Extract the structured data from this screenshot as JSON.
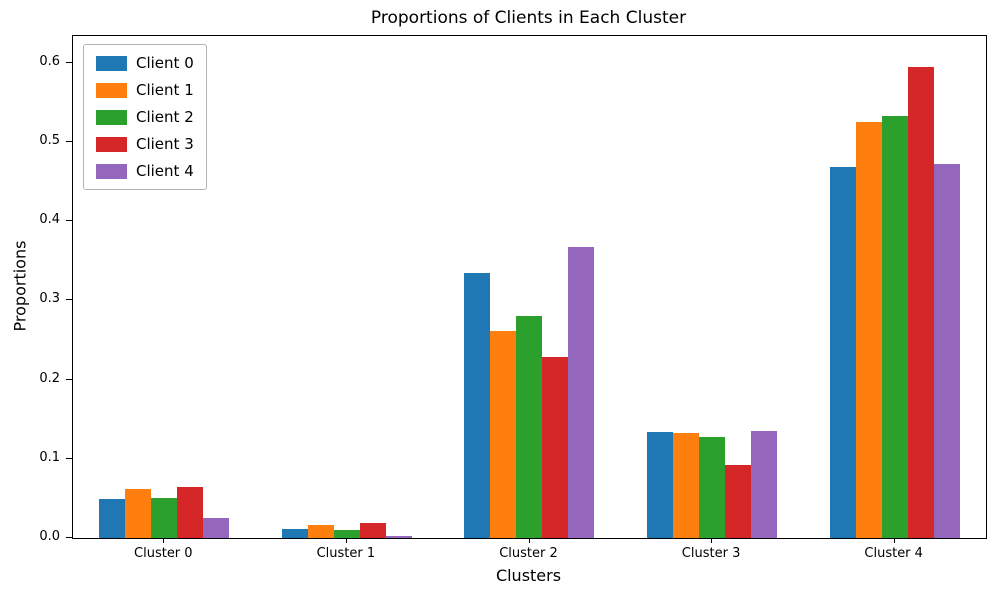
{
  "chart_data": {
    "type": "bar",
    "title": "Proportions of Clients in Each Cluster",
    "xlabel": "Clusters",
    "ylabel": "Proportions",
    "categories": [
      "Cluster 0",
      "Cluster 1",
      "Cluster 2",
      "Cluster 3",
      "Cluster 4"
    ],
    "series": [
      {
        "name": "Client 0",
        "color": "#1f77b4",
        "values": [
          0.049,
          0.012,
          0.335,
          0.134,
          0.468
        ]
      },
      {
        "name": "Client 1",
        "color": "#ff7f0e",
        "values": [
          0.062,
          0.017,
          0.262,
          0.133,
          0.526
        ]
      },
      {
        "name": "Client 2",
        "color": "#2ca02c",
        "values": [
          0.05,
          0.01,
          0.28,
          0.128,
          0.533
        ]
      },
      {
        "name": "Client 3",
        "color": "#d62728",
        "values": [
          0.065,
          0.019,
          0.229,
          0.092,
          0.595
        ]
      },
      {
        "name": "Client 4",
        "color": "#9467bd",
        "values": [
          0.025,
          0.002,
          0.368,
          0.135,
          0.472
        ]
      }
    ],
    "ylim": [
      0,
      0.634
    ],
    "yticks": [
      0.0,
      0.1,
      0.2,
      0.3,
      0.4,
      0.5,
      0.6
    ],
    "legend_position": "upper left",
    "grid": false,
    "background_color": "#ffffff",
    "spine_color": "#000000"
  }
}
